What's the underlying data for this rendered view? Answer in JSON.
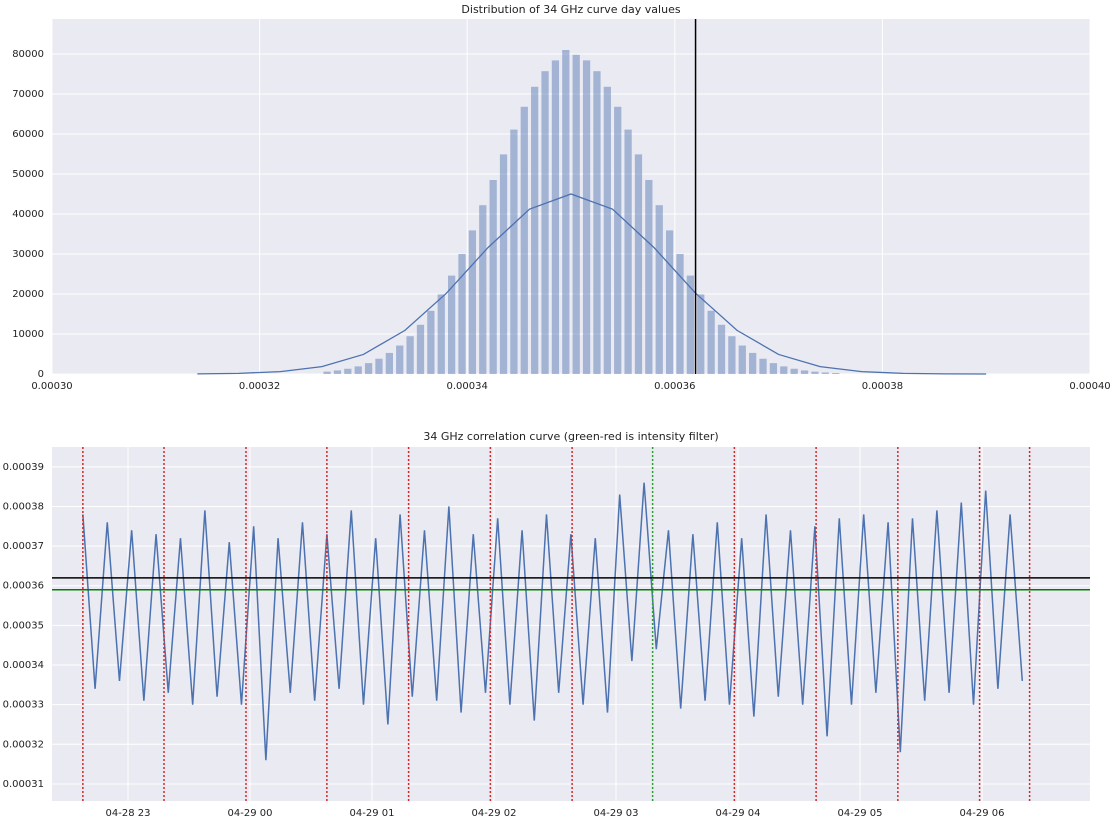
{
  "chart_data": [
    {
      "type": "histogram",
      "title": "Distribution of 34 GHz curve day values",
      "bins": [
        0.000326,
        0.000327,
        0.000328,
        0.000329,
        0.00033,
        0.000331,
        0.000332,
        0.000333,
        0.000334,
        0.000335,
        0.000336,
        0.000337,
        0.000338,
        0.000339,
        0.00034,
        0.000341,
        0.000342,
        0.000343,
        0.000344,
        0.000345,
        0.000346,
        0.000347,
        0.000348,
        0.000349,
        0.00035,
        0.000351,
        0.000352,
        0.000353,
        0.000354,
        0.000355,
        0.000356,
        0.000357,
        0.000358,
        0.000359,
        0.00036,
        0.000361,
        0.000362,
        0.000363,
        0.000364,
        0.000365,
        0.000366,
        0.000367,
        0.000368,
        0.000369,
        0.00037,
        0.000371,
        0.000372,
        0.000373,
        0.000374,
        0.000375,
        0.000376
      ],
      "counts": [
        590,
        890,
        1310,
        1900,
        2720,
        3820,
        5270,
        7120,
        9440,
        12300,
        15800,
        19900,
        24600,
        30000,
        35900,
        42200,
        48500,
        54900,
        61100,
        66800,
        71800,
        75700,
        78400,
        81000,
        79800,
        78400,
        75700,
        71800,
        66800,
        61100,
        54900,
        48500,
        42200,
        35900,
        30000,
        24600,
        19900,
        15800,
        12300,
        9440,
        7120,
        5270,
        3820,
        2720,
        1900,
        1310,
        890,
        590,
        380,
        250
      ],
      "color": "#4c72b0",
      "kde": {
        "x": [
          0.000314,
          0.000318,
          0.000322,
          0.000326,
          0.00033,
          0.000334,
          0.000338,
          0.000342,
          0.000346,
          0.00035,
          0.000354,
          0.000358,
          0.000362,
          0.000366,
          0.00037,
          0.000374,
          0.000378,
          0.000382,
          0.000386,
          0.00039
        ],
        "y": [
          34,
          155,
          586,
          1850,
          4890,
          10900,
          20200,
          31600,
          41200,
          45000,
          41200,
          31600,
          20200,
          10900,
          4890,
          1850,
          586,
          155,
          34,
          6
        ]
      },
      "vline": 0.000362,
      "xlim": [
        0.0003,
        0.0004
      ],
      "ylim": [
        0,
        88750
      ],
      "xticks": [
        {
          "value": 0.0003,
          "label": "0.00030"
        },
        {
          "value": 0.00032,
          "label": "0.00032"
        },
        {
          "value": 0.00034,
          "label": "0.00034"
        },
        {
          "value": 0.00036,
          "label": "0.00036"
        },
        {
          "value": 0.00038,
          "label": "0.00038"
        },
        {
          "value": 0.0004,
          "label": "0.00040"
        }
      ],
      "yticks": [
        0,
        10000,
        20000,
        30000,
        40000,
        50000,
        60000,
        70000,
        80000
      ],
      "grid": true
    },
    {
      "type": "line",
      "title": "34 GHz correlation curve (green-red is intensity filter)",
      "x": [
        22.63,
        22.73,
        22.83,
        22.93,
        23.03,
        23.13,
        23.23,
        23.33,
        23.43,
        23.53,
        23.63,
        23.73,
        23.83,
        23.93,
        24.03,
        24.13,
        24.23,
        24.33,
        24.43,
        24.53,
        24.63,
        24.73,
        24.83,
        24.93,
        25.03,
        25.13,
        25.23,
        25.33,
        25.43,
        25.53,
        25.63,
        25.73,
        25.83,
        25.93,
        26.03,
        26.13,
        26.23,
        26.33,
        26.43,
        26.53,
        26.63,
        26.73,
        26.83,
        26.93,
        27.03,
        27.13,
        27.23,
        27.33,
        27.43,
        27.53,
        27.63,
        27.73,
        27.83,
        27.93,
        28.03,
        28.13,
        28.23,
        28.33,
        28.43,
        28.53,
        28.63,
        28.73,
        28.83,
        28.93,
        29.03,
        29.13,
        29.23,
        29.33,
        29.43,
        29.53,
        29.63,
        29.73,
        29.83,
        29.93,
        30.03,
        30.13,
        30.23,
        30.33
      ],
      "values": [
        0.000378,
        0.000334,
        0.000376,
        0.000336,
        0.000374,
        0.000331,
        0.000373,
        0.000333,
        0.000372,
        0.00033,
        0.000379,
        0.000332,
        0.000371,
        0.00033,
        0.000375,
        0.000316,
        0.000372,
        0.000333,
        0.000376,
        0.000331,
        0.000373,
        0.000334,
        0.000379,
        0.00033,
        0.000372,
        0.000325,
        0.000378,
        0.000332,
        0.000374,
        0.000331,
        0.00038,
        0.000328,
        0.000373,
        0.000333,
        0.000377,
        0.00033,
        0.000374,
        0.000326,
        0.000378,
        0.000333,
        0.000373,
        0.00033,
        0.000372,
        0.000328,
        0.000383,
        0.000341,
        0.000386,
        0.000344,
        0.000374,
        0.000329,
        0.000373,
        0.000331,
        0.000376,
        0.00033,
        0.000372,
        0.000327,
        0.000378,
        0.000332,
        0.000374,
        0.00033,
        0.000375,
        0.000322,
        0.000377,
        0.00033,
        0.000378,
        0.000333,
        0.000376,
        0.000318,
        0.000377,
        0.000331,
        0.000379,
        0.000333,
        0.000381,
        0.00033,
        0.000384,
        0.000334,
        0.000378,
        0.000336
      ],
      "color": "#4c72b0",
      "red_lines": [
        22.63,
        23.295,
        23.967,
        24.63,
        25.3,
        25.97,
        26.64,
        27.97,
        28.64,
        29.31,
        29.98,
        30.39
      ],
      "green_lines": [
        27.3
      ],
      "hlines": [
        {
          "value": 0.000362,
          "color": "#000000"
        },
        {
          "value": 0.000359,
          "color": "#008000"
        }
      ],
      "xlim": [
        22.377,
        30.885
      ],
      "ylim": [
        0.0003057,
        0.000395
      ],
      "xticks": [
        {
          "value": 23,
          "label": "04-28 23"
        },
        {
          "value": 24,
          "label": "04-29 00"
        },
        {
          "value": 25,
          "label": "04-29 01"
        },
        {
          "value": 26,
          "label": "04-29 02"
        },
        {
          "value": 27,
          "label": "04-29 03"
        },
        {
          "value": 28,
          "label": "04-29 04"
        },
        {
          "value": 29,
          "label": "04-29 05"
        },
        {
          "value": 30,
          "label": "04-29 06"
        }
      ],
      "yticks": [
        {
          "value": 0.00031,
          "label": "0.00031"
        },
        {
          "value": 0.00032,
          "label": "0.00032"
        },
        {
          "value": 0.00033,
          "label": "0.00033"
        },
        {
          "value": 0.00034,
          "label": "0.00034"
        },
        {
          "value": 0.00035,
          "label": "0.00035"
        },
        {
          "value": 0.00036,
          "label": "0.00036"
        },
        {
          "value": 0.00037,
          "label": "0.00037"
        },
        {
          "value": 0.00038,
          "label": "0.00038"
        },
        {
          "value": 0.00039,
          "label": "0.00039"
        }
      ],
      "grid": true
    }
  ]
}
